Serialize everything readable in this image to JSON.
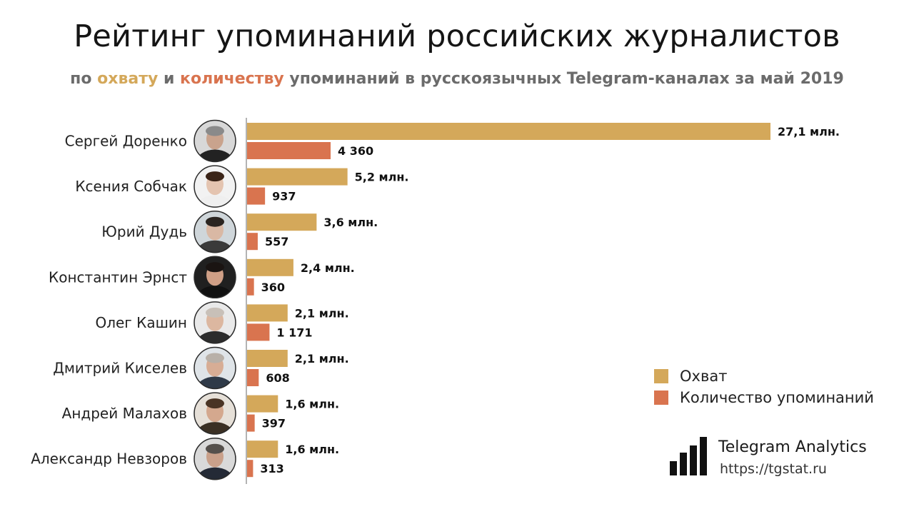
{
  "header": {
    "title": "Рейтинг упоминаний российских журналистов",
    "subtitle": {
      "part1": "по ",
      "highlight_reach": "охвату",
      "part2": " и ",
      "highlight_count": "количеству",
      "part3": " упоминаний в русскоязычных Telegram-каналах за май 2019"
    }
  },
  "colors": {
    "reach": "#d4a85a",
    "mentions": "#d9744f",
    "axis": "#9a9a9a"
  },
  "chart_data": {
    "type": "bar",
    "orientation": "horizontal",
    "categories": [
      "Сергей Доренко",
      "Ксения Собчак",
      "Юрий Дудь",
      "Константин Эрнст",
      "Олег Кашин",
      "Дмитрий Киселев",
      "Андрей Малахов",
      "Александр Невзоров"
    ],
    "series": [
      {
        "name": "Охват",
        "unit": "млн.",
        "values": [
          27.1,
          5.2,
          3.6,
          2.4,
          2.1,
          2.1,
          1.6,
          1.6
        ],
        "labels": [
          "27,1 млн.",
          "5,2 млн.",
          "3,6 млн.",
          "2,4 млн.",
          "2,1 млн.",
          "2,1 млн.",
          "1,6 млн.",
          "1,6 млн."
        ]
      },
      {
        "name": "Количество упоминаний",
        "values": [
          4360,
          937,
          557,
          360,
          1171,
          608,
          397,
          313
        ],
        "labels": [
          "4 360",
          "937",
          "557",
          "360",
          "1 171",
          "608",
          "397",
          "313"
        ]
      }
    ],
    "legend_position": "right",
    "grid": false
  },
  "avatars": [
    {
      "icon": "portrait-icon",
      "skin": "#c9a38d",
      "hair": "#8a8a8a",
      "bg": "#d8d8d8",
      "cloth": "#222222"
    },
    {
      "icon": "portrait-icon",
      "skin": "#e4c4b0",
      "hair": "#3a2418",
      "bg": "#f2f2f2",
      "cloth": "#efefef"
    },
    {
      "icon": "portrait-icon",
      "skin": "#d9b8a4",
      "hair": "#2a2420",
      "bg": "#cfd6da",
      "cloth": "#3a3a3a"
    },
    {
      "icon": "portrait-icon",
      "skin": "#cf9f86",
      "hair": "#1a1412",
      "bg": "#202020",
      "cloth": "#111111"
    },
    {
      "icon": "portrait-icon",
      "skin": "#dcb7a0",
      "hair": "#c8c0b8",
      "bg": "#e9e9e9",
      "cloth": "#2c2c2c"
    },
    {
      "icon": "portrait-icon",
      "skin": "#d7ad95",
      "hair": "#b8b0a8",
      "bg": "#dfe4e8",
      "cloth": "#2f3a48"
    },
    {
      "icon": "portrait-icon",
      "skin": "#d4a88e",
      "hair": "#4a3424",
      "bg": "#e6e0d8",
      "cloth": "#3b3024"
    },
    {
      "icon": "portrait-icon",
      "skin": "#c9a08a",
      "hair": "#55504c",
      "bg": "#d9d9d9",
      "cloth": "#242a36"
    }
  ],
  "brand": {
    "name": "Telegram Analytics",
    "url": "https://tgstat.ru",
    "logo_icon": "bar-chart-logo-icon"
  }
}
